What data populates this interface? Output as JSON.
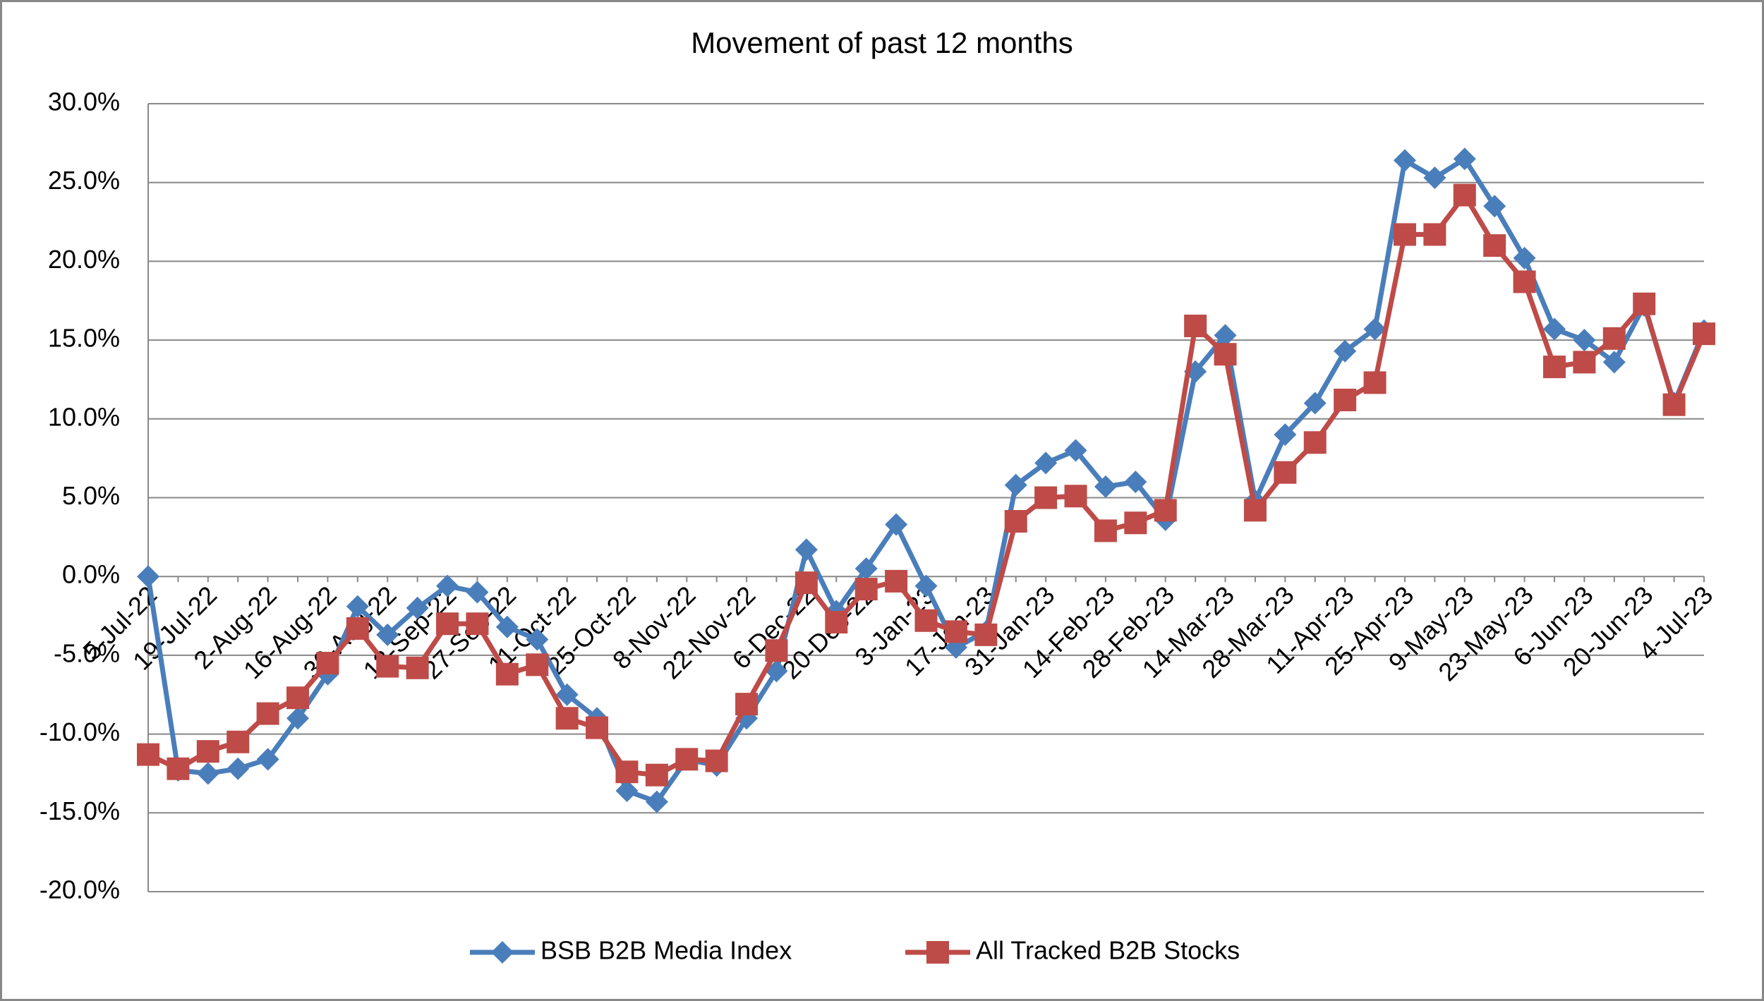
{
  "chart_data": {
    "type": "line",
    "title": "Movement of past 12 months",
    "categories": [
      "5-Jul-22",
      null,
      "19-Jul-22",
      null,
      "2-Aug-22",
      null,
      "16-Aug-22",
      null,
      "30-Aug-22",
      null,
      "13-Sep-22",
      null,
      "27-Sep-22",
      null,
      "11-Oct-22",
      null,
      "25-Oct-22",
      null,
      "8-Nov-22",
      null,
      "22-Nov-22",
      null,
      "6-Dec-22",
      null,
      "20-Dec-22",
      null,
      "3-Jan-23",
      null,
      "17-Jan-23",
      null,
      "31-Jan-23",
      null,
      "14-Feb-23",
      null,
      "28-Feb-23",
      null,
      "14-Mar-23",
      null,
      "28-Mar-23",
      null,
      "11-Apr-23",
      null,
      "25-Apr-23",
      null,
      "9-May-23",
      null,
      "23-May-23",
      null,
      "6-Jun-23",
      null,
      "20-Jun-23",
      null,
      "4-Jul-23"
    ],
    "series": [
      {
        "name": "BSB B2B Media Index",
        "color": "#4a7ebb",
        "marker": "diamond",
        "values": [
          0.0,
          -12.3,
          -12.5,
          -12.2,
          -11.6,
          -9.0,
          -6.2,
          -1.9,
          -3.7,
          -2.0,
          -0.6,
          -1.0,
          -3.2,
          -4.0,
          -7.5,
          -9.0,
          -13.6,
          -14.3,
          -11.6,
          -12.0,
          -9.0,
          -6.0,
          1.7,
          -2.2,
          0.5,
          3.3,
          -0.6,
          -4.5,
          -3.5,
          5.8,
          7.2,
          8.0,
          5.7,
          6.0,
          3.6,
          13.0,
          15.3,
          4.8,
          9.0,
          11.0,
          14.3,
          15.7,
          26.4,
          25.3,
          26.5,
          23.5,
          20.2,
          15.7,
          15.0,
          13.6,
          17.2,
          11.0,
          15.6
        ]
      },
      {
        "name": "All Tracked B2B Stocks",
        "color": "#be4b48",
        "marker": "square",
        "values": [
          -11.3,
          -12.2,
          -11.1,
          -10.5,
          -8.7,
          -7.7,
          -5.5,
          -3.3,
          -5.7,
          -5.8,
          -3.0,
          -3.0,
          -6.2,
          -5.6,
          -9.0,
          -9.6,
          -12.4,
          -12.6,
          -11.6,
          -11.7,
          -8.1,
          -4.7,
          -0.4,
          -2.9,
          -0.8,
          -0.3,
          -2.8,
          -3.5,
          -3.7,
          3.5,
          5.0,
          5.1,
          2.9,
          3.4,
          4.2,
          15.9,
          14.1,
          4.2,
          6.6,
          8.5,
          11.2,
          12.3,
          21.7,
          21.7,
          24.2,
          21.0,
          18.7,
          13.3,
          13.6,
          15.1,
          17.3,
          10.9,
          15.4
        ]
      }
    ],
    "ylim": [
      -20,
      30
    ],
    "yticks": [
      {
        "value": -20,
        "label": "-20.0%"
      },
      {
        "value": -15,
        "label": "-15.0%"
      },
      {
        "value": -10,
        "label": "-10.0%"
      },
      {
        "value": -5,
        "label": "-5.0%"
      },
      {
        "value": 0,
        "label": "0.0%"
      },
      {
        "value": 5,
        "label": "5.0%"
      },
      {
        "value": 10,
        "label": "10.0%"
      },
      {
        "value": 15,
        "label": "15.0%"
      },
      {
        "value": 20,
        "label": "20.0%"
      },
      {
        "value": 25,
        "label": "25.0%"
      },
      {
        "value": 30,
        "label": "30.0%"
      }
    ],
    "grid": true,
    "legend": "bottom"
  }
}
